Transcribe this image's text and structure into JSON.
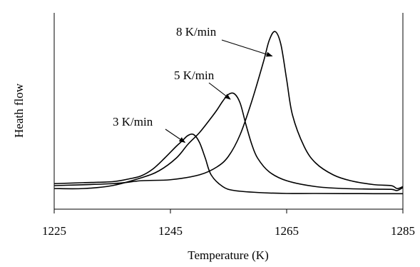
{
  "chart_data": {
    "type": "line",
    "title": "",
    "xlabel": "Temperature  (K)",
    "ylabel": "Heath flow",
    "xlim": [
      1225,
      1285
    ],
    "x_ticks": [
      1225,
      1245,
      1265,
      1285
    ],
    "x_tick_labels": [
      "1225",
      "1245",
      "1265",
      "1285"
    ],
    "ylim": [
      0,
      100
    ],
    "y_ticks_shown": false,
    "grid": false,
    "legend": "none",
    "series": [
      {
        "name": "3 K/min",
        "x": [
          1225,
          1230,
          1235,
          1238,
          1240,
          1242,
          1244,
          1246,
          1247,
          1248,
          1249,
          1250,
          1251,
          1252,
          1254,
          1256,
          1260,
          1265,
          1270,
          1280,
          1285
        ],
        "y": [
          13,
          13.5,
          14,
          15.5,
          17,
          20.5,
          26,
          32,
          34.7,
          37.5,
          38,
          34,
          26,
          17.5,
          11.5,
          9.5,
          8.5,
          8,
          8,
          7.9,
          7.9
        ]
      },
      {
        "name": "5 K/min",
        "x": [
          1225,
          1230,
          1235,
          1240,
          1243,
          1246,
          1248,
          1250,
          1252,
          1253,
          1254,
          1255,
          1256,
          1257,
          1258,
          1259,
          1260,
          1262,
          1265,
          1270,
          1275,
          1280,
          1283,
          1284,
          1285
        ],
        "y": [
          10.5,
          10.5,
          12,
          16,
          19.5,
          26,
          33,
          39,
          46.5,
          50.5,
          55,
          58.5,
          58.8,
          54,
          43,
          33,
          26,
          19,
          14.5,
          11.5,
          10.5,
          10.2,
          10.1,
          9.5,
          11
        ]
      },
      {
        "name": "8 K/min",
        "x": [
          1225,
          1235,
          1240,
          1245,
          1250,
          1253,
          1255,
          1257,
          1259,
          1261,
          1262,
          1263,
          1264,
          1265,
          1266,
          1268,
          1270,
          1273,
          1276,
          1280,
          1283,
          1284,
          1285
        ],
        "y": [
          12,
          13,
          14.5,
          15,
          17.5,
          21.5,
          27,
          38,
          55,
          75,
          86,
          90.5,
          84,
          66,
          48,
          32,
          23.5,
          17.5,
          14.5,
          12.5,
          12,
          10.5,
          11.5
        ]
      }
    ],
    "annotations": [
      {
        "text": "8 K/min",
        "points_to": {
          "x": 1262.5,
          "y": 78
        }
      },
      {
        "text": "5 K/min",
        "points_to": {
          "x": 1255.3,
          "y": 56
        }
      },
      {
        "text": "3 K/min",
        "points_to": {
          "x": 1247.5,
          "y": 34
        }
      }
    ]
  }
}
